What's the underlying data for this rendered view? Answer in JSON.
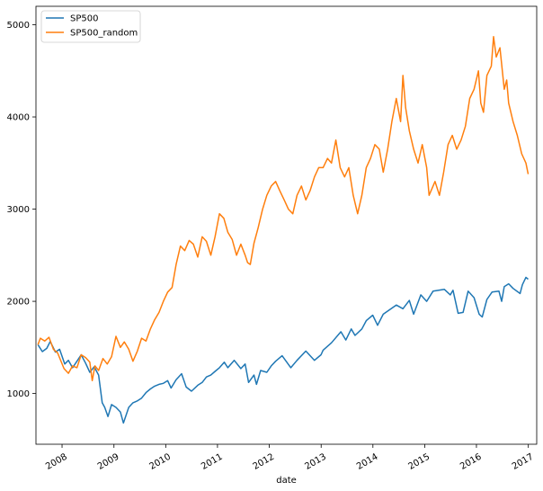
{
  "chart_data": {
    "type": "line",
    "title": "",
    "xlabel": "date",
    "ylabel": "",
    "xlim": [
      "2007-07-01",
      "2017-03-01"
    ],
    "ylim": [
      450,
      5200
    ],
    "grid": false,
    "legend_placement": "top-left",
    "x_ticks": [
      {
        "label": "2008",
        "date": "2008-01-01"
      },
      {
        "label": "2009",
        "date": "2009-01-01"
      },
      {
        "label": "2010",
        "date": "2010-01-01"
      },
      {
        "label": "2011",
        "date": "2011-01-01"
      },
      {
        "label": "2012",
        "date": "2012-01-01"
      },
      {
        "label": "2013",
        "date": "2013-01-01"
      },
      {
        "label": "2014",
        "date": "2014-01-01"
      },
      {
        "label": "2015",
        "date": "2015-01-01"
      },
      {
        "label": "2016",
        "date": "2016-01-01"
      },
      {
        "label": "2017",
        "date": "2017-01-01"
      }
    ],
    "y_ticks": [
      1000,
      2000,
      3000,
      4000,
      5000
    ],
    "series": [
      {
        "name": "SP500",
        "color": "#1f77b4",
        "points": [
          [
            "2007-07-15",
            1530
          ],
          [
            "2007-08-15",
            1455
          ],
          [
            "2007-09-15",
            1490
          ],
          [
            "2007-10-10",
            1565
          ],
          [
            "2007-11-15",
            1450
          ],
          [
            "2007-12-15",
            1480
          ],
          [
            "2008-01-20",
            1320
          ],
          [
            "2008-02-15",
            1360
          ],
          [
            "2008-03-15",
            1280
          ],
          [
            "2008-04-15",
            1350
          ],
          [
            "2008-05-15",
            1420
          ],
          [
            "2008-06-15",
            1330
          ],
          [
            "2008-07-15",
            1230
          ],
          [
            "2008-08-15",
            1290
          ],
          [
            "2008-09-15",
            1200
          ],
          [
            "2008-10-10",
            900
          ],
          [
            "2008-10-28",
            850
          ],
          [
            "2008-11-20",
            750
          ],
          [
            "2008-12-15",
            880
          ],
          [
            "2009-01-15",
            850
          ],
          [
            "2009-02-15",
            800
          ],
          [
            "2009-03-09",
            680
          ],
          [
            "2009-04-15",
            850
          ],
          [
            "2009-05-15",
            900
          ],
          [
            "2009-06-15",
            920
          ],
          [
            "2009-07-15",
            950
          ],
          [
            "2009-08-15",
            1010
          ],
          [
            "2009-09-15",
            1050
          ],
          [
            "2009-10-15",
            1080
          ],
          [
            "2009-11-15",
            1100
          ],
          [
            "2009-12-15",
            1110
          ],
          [
            "2010-01-15",
            1140
          ],
          [
            "2010-02-08",
            1060
          ],
          [
            "2010-03-15",
            1150
          ],
          [
            "2010-04-23",
            1215
          ],
          [
            "2010-05-25",
            1070
          ],
          [
            "2010-07-02",
            1025
          ],
          [
            "2010-08-15",
            1090
          ],
          [
            "2010-09-15",
            1120
          ],
          [
            "2010-10-15",
            1180
          ],
          [
            "2010-11-15",
            1200
          ],
          [
            "2010-12-15",
            1240
          ],
          [
            "2011-01-15",
            1280
          ],
          [
            "2011-02-18",
            1340
          ],
          [
            "2011-03-15",
            1280
          ],
          [
            "2011-04-29",
            1360
          ],
          [
            "2011-06-15",
            1270
          ],
          [
            "2011-07-15",
            1320
          ],
          [
            "2011-08-08",
            1120
          ],
          [
            "2011-09-15",
            1200
          ],
          [
            "2011-10-03",
            1100
          ],
          [
            "2011-11-01",
            1250
          ],
          [
            "2011-12-15",
            1230
          ],
          [
            "2012-01-15",
            1300
          ],
          [
            "2012-02-15",
            1350
          ],
          [
            "2012-04-01",
            1410
          ],
          [
            "2012-06-01",
            1280
          ],
          [
            "2012-07-15",
            1360
          ],
          [
            "2012-09-15",
            1460
          ],
          [
            "2012-11-15",
            1360
          ],
          [
            "2012-12-31",
            1420
          ],
          [
            "2013-01-15",
            1470
          ],
          [
            "2013-03-15",
            1550
          ],
          [
            "2013-05-20",
            1670
          ],
          [
            "2013-06-24",
            1580
          ],
          [
            "2013-08-01",
            1700
          ],
          [
            "2013-08-28",
            1630
          ],
          [
            "2013-10-15",
            1700
          ],
          [
            "2013-11-15",
            1790
          ],
          [
            "2013-12-31",
            1850
          ],
          [
            "2014-02-03",
            1740
          ],
          [
            "2014-03-15",
            1860
          ],
          [
            "2014-06-15",
            1960
          ],
          [
            "2014-08-01",
            1920
          ],
          [
            "2014-09-15",
            2010
          ],
          [
            "2014-10-15",
            1860
          ],
          [
            "2014-12-05",
            2070
          ],
          [
            "2015-01-15",
            2000
          ],
          [
            "2015-03-01",
            2110
          ],
          [
            "2015-05-20",
            2130
          ],
          [
            "2015-07-01",
            2070
          ],
          [
            "2015-07-20",
            2120
          ],
          [
            "2015-08-25",
            1870
          ],
          [
            "2015-09-29",
            1880
          ],
          [
            "2015-11-03",
            2110
          ],
          [
            "2015-12-15",
            2040
          ],
          [
            "2016-01-20",
            1860
          ],
          [
            "2016-02-11",
            1830
          ],
          [
            "2016-03-15",
            2020
          ],
          [
            "2016-04-20",
            2100
          ],
          [
            "2016-06-08",
            2110
          ],
          [
            "2016-06-27",
            2000
          ],
          [
            "2016-07-15",
            2160
          ],
          [
            "2016-08-15",
            2190
          ],
          [
            "2016-09-15",
            2140
          ],
          [
            "2016-11-04",
            2085
          ],
          [
            "2016-11-20",
            2180
          ],
          [
            "2016-12-15",
            2260
          ],
          [
            "2016-12-31",
            2240
          ]
        ]
      },
      {
        "name": "SP500_random",
        "color": "#ff7f0e",
        "points": [
          [
            "2007-07-15",
            1530
          ],
          [
            "2007-08-01",
            1600
          ],
          [
            "2007-09-01",
            1570
          ],
          [
            "2007-10-01",
            1610
          ],
          [
            "2007-11-01",
            1480
          ],
          [
            "2007-12-01",
            1440
          ],
          [
            "2008-01-15",
            1270
          ],
          [
            "2008-02-15",
            1220
          ],
          [
            "2008-03-15",
            1300
          ],
          [
            "2008-04-15",
            1280
          ],
          [
            "2008-05-15",
            1420
          ],
          [
            "2008-06-15",
            1390
          ],
          [
            "2008-07-15",
            1340
          ],
          [
            "2008-08-01",
            1140
          ],
          [
            "2008-08-20",
            1300
          ],
          [
            "2008-09-15",
            1250
          ],
          [
            "2008-10-15",
            1380
          ],
          [
            "2008-11-15",
            1320
          ],
          [
            "2008-12-15",
            1400
          ],
          [
            "2009-01-15",
            1620
          ],
          [
            "2009-02-15",
            1500
          ],
          [
            "2009-03-15",
            1560
          ],
          [
            "2009-04-15",
            1480
          ],
          [
            "2009-05-15",
            1350
          ],
          [
            "2009-06-15",
            1460
          ],
          [
            "2009-07-15",
            1600
          ],
          [
            "2009-08-15",
            1570
          ],
          [
            "2009-09-15",
            1700
          ],
          [
            "2009-10-15",
            1800
          ],
          [
            "2009-11-15",
            1880
          ],
          [
            "2009-12-15",
            2000
          ],
          [
            "2010-01-15",
            2100
          ],
          [
            "2010-02-15",
            2150
          ],
          [
            "2010-03-15",
            2400
          ],
          [
            "2010-04-15",
            2600
          ],
          [
            "2010-05-15",
            2550
          ],
          [
            "2010-06-15",
            2660
          ],
          [
            "2010-07-15",
            2620
          ],
          [
            "2010-08-15",
            2480
          ],
          [
            "2010-09-15",
            2700
          ],
          [
            "2010-10-15",
            2650
          ],
          [
            "2010-11-15",
            2500
          ],
          [
            "2010-12-15",
            2700
          ],
          [
            "2011-01-15",
            2950
          ],
          [
            "2011-02-15",
            2900
          ],
          [
            "2011-03-15",
            2750
          ],
          [
            "2011-04-15",
            2670
          ],
          [
            "2011-05-15",
            2500
          ],
          [
            "2011-06-15",
            2620
          ],
          [
            "2011-07-15",
            2500
          ],
          [
            "2011-08-01",
            2420
          ],
          [
            "2011-08-20",
            2400
          ],
          [
            "2011-09-15",
            2630
          ],
          [
            "2011-10-15",
            2800
          ],
          [
            "2011-11-15",
            3000
          ],
          [
            "2011-12-15",
            3150
          ],
          [
            "2012-01-15",
            3250
          ],
          [
            "2012-02-15",
            3300
          ],
          [
            "2012-03-15",
            3200
          ],
          [
            "2012-04-15",
            3100
          ],
          [
            "2012-05-15",
            3000
          ],
          [
            "2012-06-15",
            2950
          ],
          [
            "2012-07-15",
            3150
          ],
          [
            "2012-08-15",
            3250
          ],
          [
            "2012-09-15",
            3100
          ],
          [
            "2012-10-15",
            3200
          ],
          [
            "2012-11-15",
            3350
          ],
          [
            "2012-12-15",
            3450
          ],
          [
            "2013-01-15",
            3450
          ],
          [
            "2013-02-15",
            3550
          ],
          [
            "2013-03-15",
            3500
          ],
          [
            "2013-04-15",
            3750
          ],
          [
            "2013-05-15",
            3450
          ],
          [
            "2013-06-15",
            3350
          ],
          [
            "2013-07-15",
            3450
          ],
          [
            "2013-08-15",
            3150
          ],
          [
            "2013-09-15",
            2950
          ],
          [
            "2013-10-15",
            3150
          ],
          [
            "2013-11-15",
            3450
          ],
          [
            "2013-12-15",
            3550
          ],
          [
            "2014-01-15",
            3700
          ],
          [
            "2014-02-15",
            3650
          ],
          [
            "2014-03-15",
            3400
          ],
          [
            "2014-04-15",
            3650
          ],
          [
            "2014-05-15",
            3950
          ],
          [
            "2014-06-15",
            4200
          ],
          [
            "2014-07-15",
            3950
          ],
          [
            "2014-08-01",
            4450
          ],
          [
            "2014-08-20",
            4100
          ],
          [
            "2014-09-15",
            3850
          ],
          [
            "2014-10-15",
            3650
          ],
          [
            "2014-11-15",
            3500
          ],
          [
            "2014-12-15",
            3700
          ],
          [
            "2015-01-15",
            3450
          ],
          [
            "2015-02-01",
            3150
          ],
          [
            "2015-03-15",
            3300
          ],
          [
            "2015-04-15",
            3150
          ],
          [
            "2015-05-15",
            3400
          ],
          [
            "2015-06-15",
            3700
          ],
          [
            "2015-07-15",
            3800
          ],
          [
            "2015-08-15",
            3650
          ],
          [
            "2015-09-15",
            3750
          ],
          [
            "2015-10-15",
            3900
          ],
          [
            "2015-11-15",
            4200
          ],
          [
            "2015-12-15",
            4300
          ],
          [
            "2016-01-15",
            4500
          ],
          [
            "2016-02-01",
            4150
          ],
          [
            "2016-02-20",
            4050
          ],
          [
            "2016-03-15",
            4450
          ],
          [
            "2016-04-15",
            4550
          ],
          [
            "2016-05-01",
            4870
          ],
          [
            "2016-05-20",
            4650
          ],
          [
            "2016-06-15",
            4750
          ],
          [
            "2016-07-15",
            4300
          ],
          [
            "2016-08-01",
            4400
          ],
          [
            "2016-08-15",
            4150
          ],
          [
            "2016-09-15",
            3950
          ],
          [
            "2016-10-15",
            3800
          ],
          [
            "2016-11-15",
            3600
          ],
          [
            "2016-12-15",
            3500
          ],
          [
            "2016-12-31",
            3380
          ]
        ]
      }
    ]
  }
}
